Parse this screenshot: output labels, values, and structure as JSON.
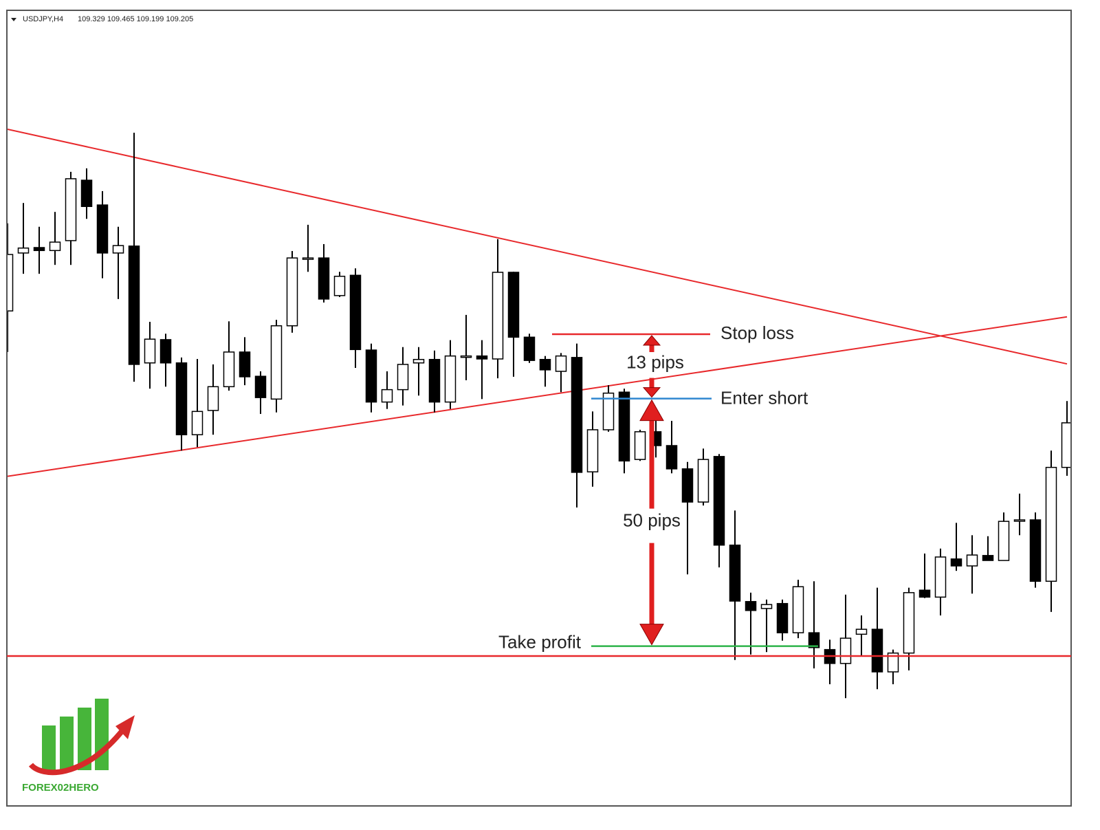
{
  "chart_data": {
    "type": "candlestick",
    "title": "USDJPY,H4",
    "subtitle": "109.329 109.465 109.199 109.205",
    "ylim": [
      108.7,
      110.3
    ],
    "up_color": "#ffffff",
    "down_color": "#000000",
    "open": [
      109.697,
      109.814,
      109.825,
      109.819,
      109.839,
      109.961,
      109.911,
      109.814,
      109.828,
      109.592,
      109.639,
      109.592,
      109.447,
      109.496,
      109.544,
      109.614,
      109.565,
      109.519,
      109.667,
      109.803,
      109.804,
      109.728,
      109.769,
      109.618,
      109.513,
      109.538,
      109.592,
      109.599,
      109.513,
      109.604,
      109.606,
      109.6,
      109.775,
      109.644,
      109.599,
      109.575,
      109.603,
      109.372,
      109.457,
      109.533,
      109.397,
      109.453,
      109.425,
      109.378,
      109.311,
      109.403,
      109.224,
      109.11,
      109.096,
      109.106,
      109.047,
      109.047,
      109.013,
      108.985,
      109.044,
      109.054,
      108.968,
      109.006,
      109.133,
      109.119,
      109.196,
      109.182,
      109.203,
      109.193,
      109.274,
      109.275,
      109.151,
      109.381
    ],
    "high": [
      109.874,
      109.915,
      109.867,
      109.897,
      109.978,
      109.985,
      109.939,
      109.867,
      110.057,
      109.675,
      109.651,
      109.603,
      109.6,
      109.589,
      109.676,
      109.644,
      109.575,
      109.679,
      109.818,
      109.871,
      109.832,
      109.776,
      109.783,
      109.631,
      109.575,
      109.624,
      109.624,
      109.617,
      109.638,
      109.689,
      109.638,
      109.842,
      109.776,
      109.651,
      109.606,
      109.612,
      109.631,
      109.494,
      109.547,
      109.54,
      109.457,
      109.492,
      109.475,
      109.392,
      109.419,
      109.408,
      109.294,
      109.128,
      109.114,
      109.114,
      109.154,
      109.151,
      109.033,
      109.124,
      109.082,
      109.138,
      109.013,
      109.138,
      109.207,
      109.217,
      109.269,
      109.244,
      109.242,
      109.29,
      109.328,
      109.29,
      109.415,
      109.515
    ],
    "low": [
      109.614,
      109.772,
      109.772,
      109.79,
      109.79,
      109.883,
      109.763,
      109.721,
      109.554,
      109.54,
      109.544,
      109.415,
      109.422,
      109.447,
      109.536,
      109.547,
      109.489,
      109.492,
      109.653,
      109.776,
      109.714,
      109.725,
      109.582,
      109.492,
      109.499,
      109.506,
      109.526,
      109.492,
      109.499,
      109.557,
      109.519,
      109.561,
      109.564,
      109.592,
      109.544,
      109.533,
      109.3,
      109.342,
      109.453,
      109.369,
      109.394,
      109.401,
      109.369,
      109.165,
      109.304,
      109.179,
      108.992,
      109.003,
      109.008,
      109.031,
      109.036,
      108.975,
      108.943,
      108.915,
      108.999,
      108.933,
      108.943,
      108.971,
      109.117,
      109.082,
      109.172,
      109.126,
      109.193,
      109.193,
      109.244,
      109.138,
      109.089,
      109.364
    ],
    "close": [
      109.811,
      109.824,
      109.819,
      109.836,
      109.964,
      109.908,
      109.814,
      109.829,
      109.589,
      109.64,
      109.592,
      109.447,
      109.494,
      109.544,
      109.614,
      109.564,
      109.522,
      109.667,
      109.804,
      109.804,
      109.721,
      109.767,
      109.619,
      109.513,
      109.538,
      109.589,
      109.599,
      109.513,
      109.606,
      109.606,
      109.6,
      109.775,
      109.644,
      109.597,
      109.578,
      109.606,
      109.371,
      109.457,
      109.531,
      109.394,
      109.453,
      109.425,
      109.378,
      109.311,
      109.397,
      109.224,
      109.111,
      109.092,
      109.104,
      109.047,
      109.14,
      109.017,
      108.985,
      109.036,
      109.054,
      108.968,
      109.006,
      109.128,
      109.119,
      109.2,
      109.182,
      109.204,
      109.193,
      109.272,
      109.275,
      109.151,
      109.381,
      109.471
    ],
    "trendlines": [
      {
        "color": "#e8282b",
        "x": [
          0,
          67
        ],
        "values": [
          110.064,
          109.59
        ]
      },
      {
        "color": "#e8282b",
        "x": [
          0,
          67
        ],
        "values": [
          109.363,
          109.685
        ]
      }
    ],
    "levels": [
      {
        "name": "Stop loss",
        "value": 109.65,
        "color": "#e8282b"
      },
      {
        "name": "Enter short",
        "value": 109.52,
        "color": "#2f86d0"
      },
      {
        "name": "Take profit",
        "value": 109.02,
        "color": "#2db34a"
      },
      {
        "value": 109.0,
        "color": "#e8282b"
      }
    ],
    "annotations": [
      "13 pips",
      "50 pips"
    ],
    "logo": "FOREX02HERO"
  }
}
